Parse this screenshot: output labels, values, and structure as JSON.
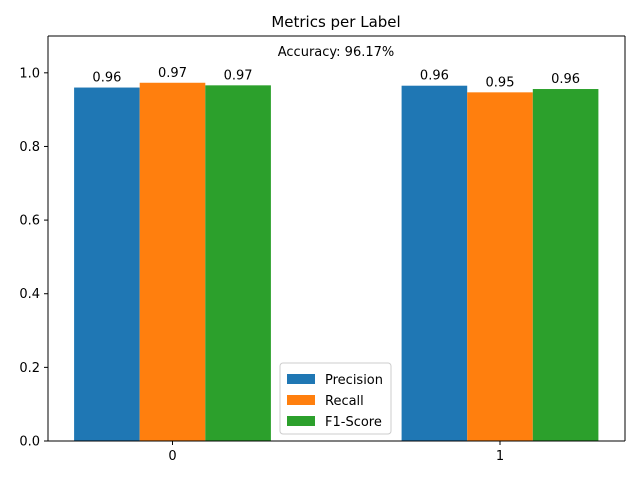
{
  "chart_data": {
    "type": "bar",
    "title": "Metrics per Label",
    "annotation": "Accuracy: 96.17%",
    "categories": [
      "0",
      "1"
    ],
    "series": [
      {
        "name": "Precision",
        "color": "#1f77b4",
        "values": [
          0.96,
          0.965
        ],
        "labels": [
          "0.96",
          "0.96"
        ]
      },
      {
        "name": "Recall",
        "color": "#ff7f0e",
        "values": [
          0.973,
          0.947
        ],
        "labels": [
          "0.97",
          "0.95"
        ]
      },
      {
        "name": "F1-Score",
        "color": "#2ca02c",
        "values": [
          0.966,
          0.956
        ],
        "labels": [
          "0.97",
          "0.96"
        ]
      }
    ],
    "ylim": [
      0,
      1.1
    ],
    "yticks": [
      0.0,
      0.2,
      0.4,
      0.6,
      0.8,
      1.0
    ],
    "ytick_labels": [
      "0.0",
      "0.2",
      "0.4",
      "0.6",
      "0.8",
      "1.0"
    ],
    "xlabel": "",
    "ylabel": "",
    "grid": false,
    "legend_position": "bottom-center"
  }
}
